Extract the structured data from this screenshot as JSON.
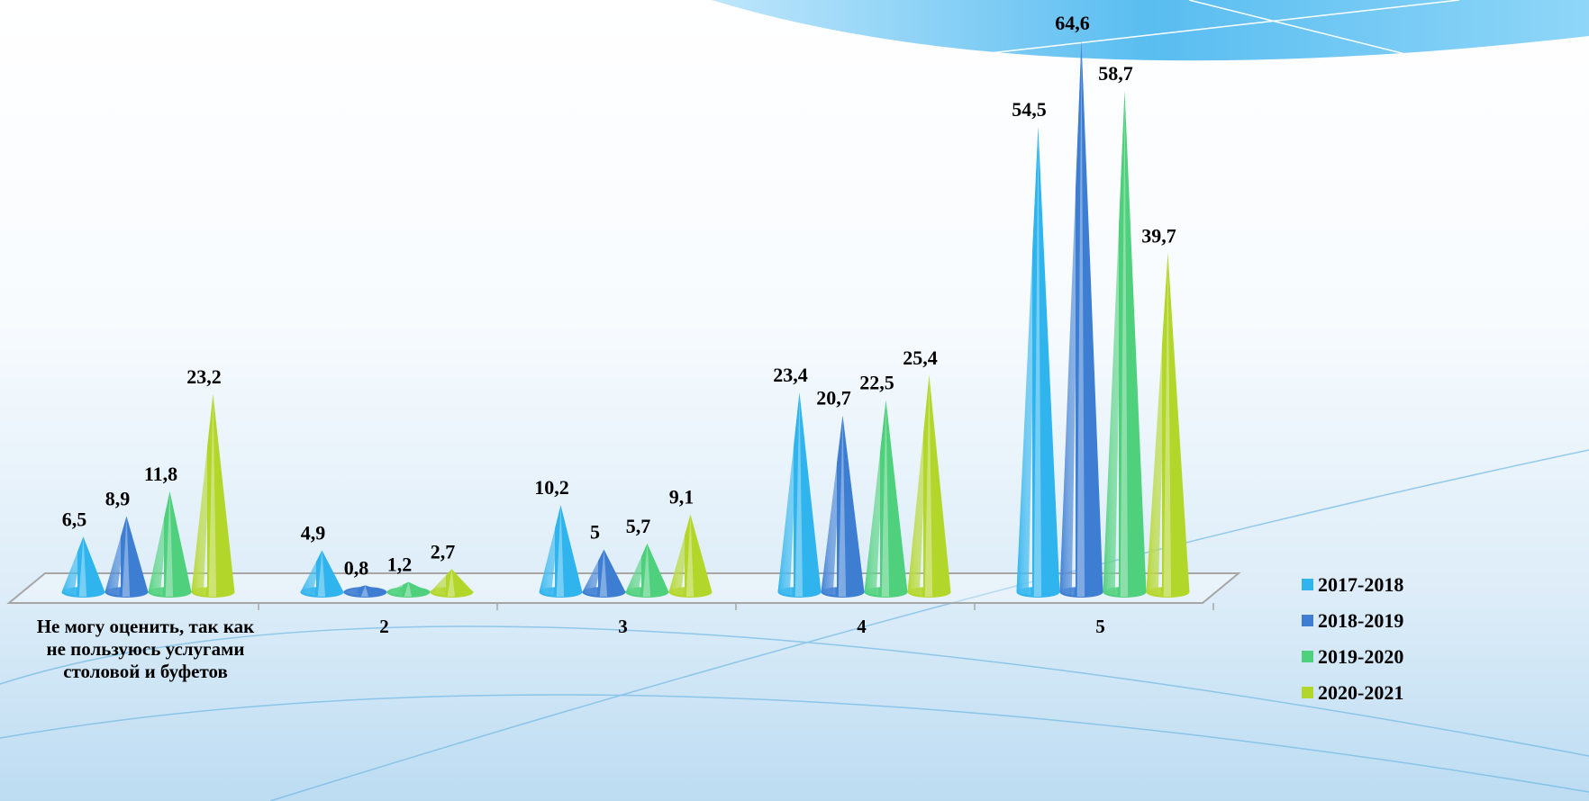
{
  "chart_data": {
    "type": "cone",
    "categories": [
      "Не могу оценить, так как не пользуюсь услугами столовой и буфетов",
      "2",
      "3",
      "4",
      "5"
    ],
    "series": [
      {
        "name": "2017-2018",
        "color": "#2fb4ee",
        "values": [
          6.5,
          4.9,
          10.2,
          23.4,
          54.5
        ],
        "value_labels": [
          "6,5",
          "4,9",
          "10,2",
          "23,4",
          "54,5"
        ]
      },
      {
        "name": "2018-2019",
        "color": "#3d7ed3",
        "values": [
          8.9,
          0.8,
          5,
          20.7,
          64.6
        ],
        "value_labels": [
          "8,9",
          "0,8",
          "5",
          "20,7",
          "64,6"
        ]
      },
      {
        "name": "2019-2020",
        "color": "#4ed07c",
        "values": [
          11.8,
          1.2,
          5.7,
          22.5,
          58.7
        ],
        "value_labels": [
          "11,8",
          "1,2",
          "5,7",
          "22,5",
          "58,7"
        ]
      },
      {
        "name": "2020-2021",
        "color": "#b3d62a",
        "values": [
          23.2,
          2.7,
          9.1,
          25.4,
          39.7
        ],
        "value_labels": [
          "23,2",
          "2,7",
          "9,1",
          "25,4",
          "39,7"
        ]
      }
    ],
    "legend": "right"
  }
}
